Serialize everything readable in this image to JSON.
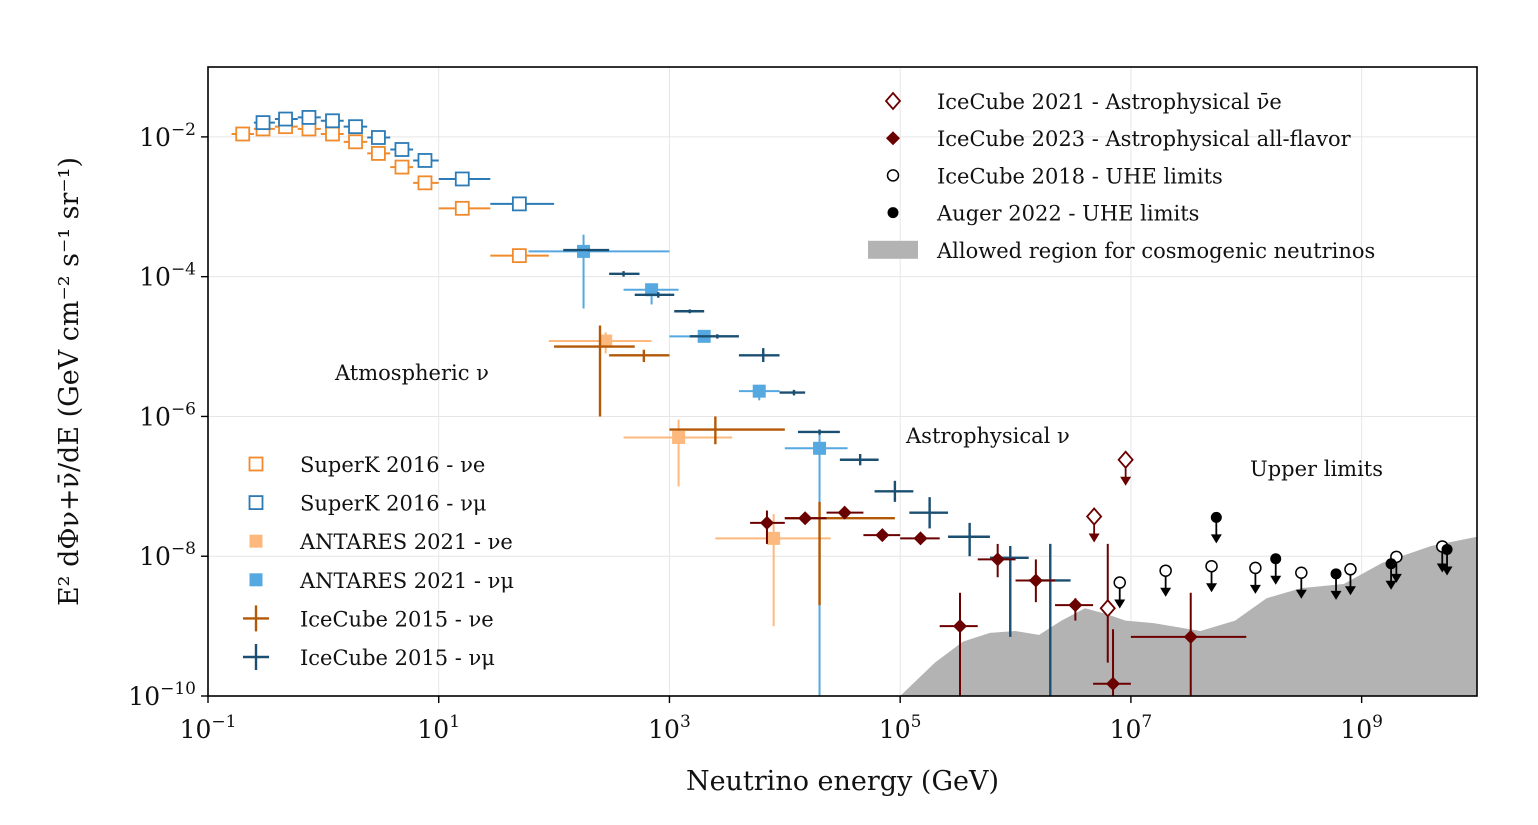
{
  "chart_data": {
    "type": "scatter",
    "xscale": "log",
    "yscale": "log",
    "xlim": [
      0.1,
      10000000000
    ],
    "ylim": [
      1e-10,
      0.1
    ],
    "xlabel": "Neutrino energy (GeV)",
    "ylabel": "E² dΦν+ν̄/dE (GeV cm⁻² s⁻¹ sr⁻¹)",
    "x_ticks": [
      {
        "value": 0.1,
        "base": "10",
        "exp": "−1"
      },
      {
        "value": 10,
        "base": "10",
        "exp": "1"
      },
      {
        "value": 1000,
        "base": "10",
        "exp": "3"
      },
      {
        "value": 100000,
        "base": "10",
        "exp": "5"
      },
      {
        "value": 10000000,
        "base": "10",
        "exp": "7"
      },
      {
        "value": 1000000000,
        "base": "10",
        "exp": "9"
      }
    ],
    "y_ticks": [
      {
        "value": 0.01,
        "base": "10",
        "exp": "−2"
      },
      {
        "value": 0.0001,
        "base": "10",
        "exp": "−4"
      },
      {
        "value": 1e-06,
        "base": "10",
        "exp": "−6"
      },
      {
        "value": 1e-08,
        "base": "10",
        "exp": "−8"
      },
      {
        "value": 1e-10,
        "base": "10",
        "exp": "−10"
      }
    ],
    "annotations": {
      "atmospheric": "Atmospheric ν",
      "astrophysical": "Astrophysical ν",
      "upper_limits": "Upper limits"
    },
    "colors": {
      "superk_e": "#f08a2c",
      "superk_mu": "#2c7bb6",
      "antares_e": "#fdb97d",
      "antares_mu": "#56a8e0",
      "icecube2015_e": "#b35806",
      "icecube2015_mu": "#1b4f72",
      "icecube_astro": "#6b0000",
      "limits": "#000000",
      "region": "#b3b3b3"
    },
    "legend_upper": [
      {
        "label": "IceCube 2021 - Astrophysical ν̄e",
        "marker": "open-diamond",
        "color": "#6b0000"
      },
      {
        "label": "IceCube 2023 - Astrophysical all-flavor",
        "marker": "filled-diamond",
        "color": "#6b0000"
      },
      {
        "label": "IceCube 2018 - UHE limits",
        "marker": "open-circle",
        "color": "#000000"
      },
      {
        "label": "Auger 2022 - UHE limits",
        "marker": "filled-circle",
        "color": "#000000"
      },
      {
        "label": "Allowed region for cosmogenic neutrinos",
        "marker": "patch",
        "color": "#b3b3b3"
      }
    ],
    "legend_lower": [
      {
        "label": "SuperK 2016 - νe",
        "marker": "open-square",
        "color": "#f08a2c"
      },
      {
        "label": "SuperK 2016 - νμ",
        "marker": "open-square",
        "color": "#2c7bb6"
      },
      {
        "label": "ANTARES 2021 - νe",
        "marker": "filled-square",
        "color": "#fdb97d"
      },
      {
        "label": "ANTARES 2021 - νμ",
        "marker": "filled-square",
        "color": "#56a8e0"
      },
      {
        "label": "IceCube 2015 - νe",
        "marker": "plus",
        "color": "#b35806"
      },
      {
        "label": "IceCube 2015 - νμ",
        "marker": "plus",
        "color": "#1b4f72"
      }
    ],
    "series": [
      {
        "name": "SuperK 2016 - νe",
        "marker": "open-square",
        "color": "#f08a2c",
        "points": [
          [
            0.2,
            0.011,
            0.16,
            0.25,
            0,
            0
          ],
          [
            0.3,
            0.013,
            0.25,
            0.38,
            0,
            0
          ],
          [
            0.47,
            0.014,
            0.38,
            0.6,
            0,
            0
          ],
          [
            0.75,
            0.013,
            0.6,
            0.95,
            0,
            0
          ],
          [
            1.2,
            0.011,
            0.95,
            1.5,
            0,
            0
          ],
          [
            1.9,
            0.0085,
            1.5,
            2.4,
            0,
            0
          ],
          [
            3.0,
            0.0058,
            2.4,
            3.8,
            0,
            0
          ],
          [
            4.8,
            0.0037,
            3.8,
            6.0,
            0,
            0
          ],
          [
            7.6,
            0.0022,
            6.0,
            10,
            0,
            0
          ],
          [
            16,
            0.00095,
            10,
            28,
            0,
            0
          ],
          [
            50,
            0.0002,
            28,
            90,
            0,
            0
          ]
        ]
      },
      {
        "name": "SuperK 2016 - νμ",
        "marker": "open-square",
        "color": "#2c7bb6",
        "points": [
          [
            0.3,
            0.016,
            0.25,
            0.38,
            0,
            0
          ],
          [
            0.47,
            0.018,
            0.38,
            0.6,
            0,
            0
          ],
          [
            0.75,
            0.019,
            0.6,
            0.95,
            0,
            0
          ],
          [
            1.2,
            0.017,
            0.95,
            1.5,
            0,
            0
          ],
          [
            1.9,
            0.014,
            1.5,
            2.4,
            0,
            0
          ],
          [
            3.0,
            0.0098,
            2.4,
            3.8,
            0,
            0
          ],
          [
            4.8,
            0.0066,
            3.8,
            6.0,
            0,
            0
          ],
          [
            7.6,
            0.0046,
            6.0,
            10,
            0,
            0
          ],
          [
            16,
            0.0025,
            10,
            28,
            0,
            0
          ],
          [
            50,
            0.0011,
            28,
            100,
            0,
            0
          ]
        ]
      },
      {
        "name": "ANTARES 2021 - νe",
        "marker": "filled-square",
        "color": "#fdb97d",
        "points": [
          [
            280,
            1.2e-05,
            90,
            700,
            8e-06,
            1.6e-05
          ],
          [
            1200,
            5e-07,
            400,
            3500,
            1e-07,
            9e-07
          ],
          [
            8000,
            1.8e-08,
            2500,
            25000,
            1e-09,
            4e-08
          ]
        ]
      },
      {
        "name": "ANTARES 2021 - νμ",
        "marker": "filled-square",
        "color": "#56a8e0",
        "points": [
          [
            180,
            0.00023,
            60,
            1000,
            3.5e-05,
            0.0004
          ],
          [
            700,
            6.5e-05,
            400,
            1200,
            4e-05,
            8e-05
          ],
          [
            2000,
            1.4e-05,
            1000,
            3000,
            1.2e-05,
            1.7e-05
          ],
          [
            6000,
            2.3e-06,
            4000,
            9000,
            1.7e-06,
            2.8e-06
          ],
          [
            20000,
            3.5e-07,
            10000,
            35000,
            1e-10,
            6e-07
          ]
        ]
      },
      {
        "name": "IceCube 2015 - νe",
        "marker": "plus",
        "color": "#b35806",
        "points": [
          [
            250,
            1e-05,
            100,
            500,
            1e-06,
            2e-05
          ],
          [
            600,
            7.5e-06,
            300,
            1000,
            6e-06,
            9e-06
          ],
          [
            2500,
            6.5e-07,
            1000,
            10000,
            4e-07,
            1e-06
          ],
          [
            20000,
            3.5e-08,
            10000,
            90000,
            2e-09,
            6e-08
          ]
        ]
      },
      {
        "name": "IceCube 2015 - νμ",
        "marker": "plus",
        "color": "#1b4f72",
        "points": [
          [
            200,
            0.00024,
            120,
            300,
            0.00023,
            0.00025
          ],
          [
            400,
            0.00011,
            300,
            550,
            0.0001,
            0.00012
          ],
          [
            800,
            5.5e-05,
            500,
            1100,
            5e-05,
            6e-05
          ],
          [
            1500,
            3.2e-05,
            1100,
            2000,
            3e-05,
            3.4e-05
          ],
          [
            2600,
            1.4e-05,
            1500,
            4000,
            1.3e-05,
            1.5e-05
          ],
          [
            6500,
            7.5e-06,
            4000,
            9000,
            6e-06,
            9.5e-06
          ],
          [
            12000,
            2.2e-06,
            9000,
            15000,
            2e-06,
            2.4e-06
          ],
          [
            20000,
            6e-07,
            13000,
            30000,
            5.5e-07,
            6.5e-07
          ],
          [
            45000,
            2.4e-07,
            30000,
            65000,
            2e-07,
            2.9e-07
          ],
          [
            90000,
            8.5e-08,
            60000,
            130000,
            6e-08,
            1.2e-07
          ],
          [
            180000,
            4.2e-08,
            120000,
            260000,
            2.5e-08,
            7e-08
          ],
          [
            400000,
            1.9e-08,
            260000,
            600000,
            1e-08,
            3e-08
          ],
          [
            900000,
            9.5e-09,
            600000,
            1300000,
            7e-10,
            1.4e-08
          ],
          [
            2000000,
            4.5e-09,
            1300000,
            3000000,
            1e-10,
            1.5e-08
          ]
        ]
      },
      {
        "name": "IceCube 2023 - Astrophysical all-flavor",
        "marker": "filled-diamond",
        "color": "#6b0000",
        "points": [
          [
            7000,
            3e-08,
            5000,
            10000,
            1.5e-08,
            4.5e-08
          ],
          [
            15000,
            3.5e-08,
            10000,
            23000,
            3e-08,
            4e-08
          ],
          [
            33000,
            4.2e-08,
            23000,
            48000,
            3.7e-08,
            4.7e-08
          ],
          [
            70000,
            2e-08,
            48000,
            100000,
            1.7e-08,
            2.3e-08
          ],
          [
            150000,
            1.8e-08,
            100000,
            220000,
            1.6e-08,
            2e-08
          ],
          [
            330000,
            1e-09,
            220000,
            470000,
            1e-10,
            3e-09
          ],
          [
            700000,
            9e-09,
            470000,
            1000000,
            5e-09,
            1.5e-08
          ],
          [
            1500000,
            4.5e-09,
            1000000,
            2200000,
            2.2e-09,
            9e-09
          ],
          [
            3300000,
            2e-09,
            2200000,
            4700000,
            1.2e-09,
            2.5e-09
          ],
          [
            7000000,
            1.5e-10,
            4700000,
            10000000,
            1e-10,
            9e-10
          ],
          [
            33000000,
            7e-10,
            10000000,
            100000000,
            1e-10,
            3e-09
          ]
        ]
      },
      {
        "name": "IceCube 2021 - Astrophysical ν̄e",
        "marker": "open-diamond",
        "color": "#6b0000",
        "points": [
          [
            6300000,
            1.8e-09,
            6300000,
            6300000,
            3e-10,
            1.5e-08
          ]
        ]
      },
      {
        "name": "IceCube 2021 - Astrophysical ν̄e (limits)",
        "marker": "open-diamond-limit",
        "color": "#6b0000",
        "points": [
          [
            4800000,
            3.7e-08
          ],
          [
            9000000,
            2.4e-07
          ]
        ]
      },
      {
        "name": "IceCube 2018 - UHE limits",
        "marker": "open-circle-limit",
        "color": "#000000",
        "points": [
          [
            8000000,
            4.2e-09
          ],
          [
            20000000,
            6.2e-09
          ],
          [
            50000000,
            7.2e-09
          ],
          [
            120000000,
            6.8e-09
          ],
          [
            300000000,
            5.8e-09
          ],
          [
            800000000,
            6.5e-09
          ],
          [
            2000000000,
            9.8e-09
          ],
          [
            5000000000,
            1.38e-08
          ]
        ]
      },
      {
        "name": "Auger 2022 - UHE limits",
        "marker": "filled-circle-limit",
        "color": "#000000",
        "points": [
          [
            55000000,
            3.6e-08
          ],
          [
            180000000,
            9.2e-09
          ],
          [
            600000000,
            5.6e-09
          ],
          [
            1800000000,
            7.8e-09
          ],
          [
            5500000000,
            1.25e-08
          ]
        ]
      }
    ],
    "allowed_region": {
      "lower_curve": [
        [
          100000,
          1e-10
        ],
        [
          200000,
          3e-10
        ],
        [
          350000,
          6e-10
        ],
        [
          600000,
          8e-10
        ],
        [
          1000000,
          8.5e-10
        ],
        [
          1600000,
          7.5e-10
        ],
        [
          2500000,
          1.2e-09
        ],
        [
          4000000,
          1.8e-09
        ],
        [
          6000000,
          1.5e-09
        ],
        [
          9000000,
          1.2e-09
        ],
        [
          16000000,
          1.1e-09
        ],
        [
          40000000,
          8.5e-10
        ],
        [
          80000000,
          1.2e-09
        ],
        [
          150000000,
          2.5e-09
        ],
        [
          300000000,
          3.5e-09
        ],
        [
          700000000,
          4e-09
        ],
        [
          1500000000,
          8e-09
        ],
        [
          4000000000,
          1.4e-08
        ],
        [
          10000000000,
          1.9e-08
        ]
      ]
    }
  }
}
